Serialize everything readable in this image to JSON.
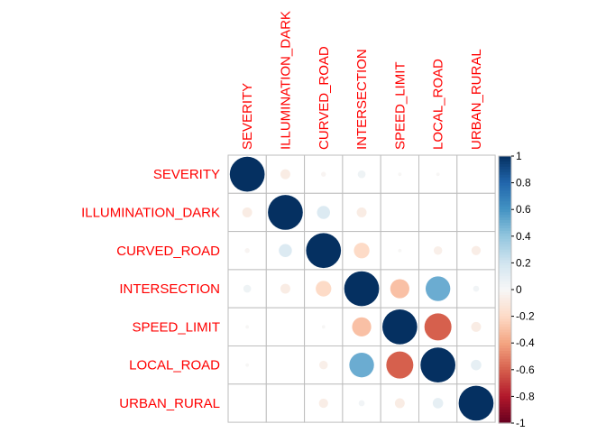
{
  "chart_data": {
    "type": "heatmap",
    "title": "",
    "variables": [
      "SEVERITY",
      "ILLUMINATION_DARK",
      "CURVED_ROAD",
      "INTERSECTION",
      "SPEED_LIMIT",
      "LOCAL_ROAD",
      "URBAN_RURAL"
    ],
    "matrix": [
      [
        1.0,
        -0.08,
        -0.02,
        0.05,
        -0.01,
        -0.01,
        0.0
      ],
      [
        -0.08,
        1.0,
        0.14,
        -0.08,
        0.0,
        0.0,
        0.0
      ],
      [
        -0.02,
        0.14,
        1.0,
        -0.2,
        -0.01,
        -0.06,
        -0.07
      ],
      [
        0.05,
        -0.08,
        -0.2,
        1.0,
        -0.3,
        0.5,
        0.03
      ],
      [
        -0.01,
        0.0,
        -0.01,
        -0.3,
        1.0,
        -0.6,
        -0.08
      ],
      [
        -0.01,
        0.0,
        -0.06,
        0.5,
        -0.6,
        1.0,
        0.09
      ],
      [
        0.0,
        0.0,
        -0.07,
        0.03,
        -0.08,
        0.09,
        1.0
      ]
    ],
    "colorbar": {
      "range": [
        -1,
        1
      ],
      "ticks": [
        "1",
        "0.8",
        "0.6",
        "0.4",
        "0.2",
        "0",
        "-0.2",
        "-0.4",
        "-0.6",
        "-0.8",
        "-1"
      ]
    },
    "colors": {
      "positive_end": "#053061",
      "negative_end": "#67001f",
      "midpoint": "#f7f7f7",
      "label": "#ff0000",
      "grid": "#bebebe"
    }
  }
}
